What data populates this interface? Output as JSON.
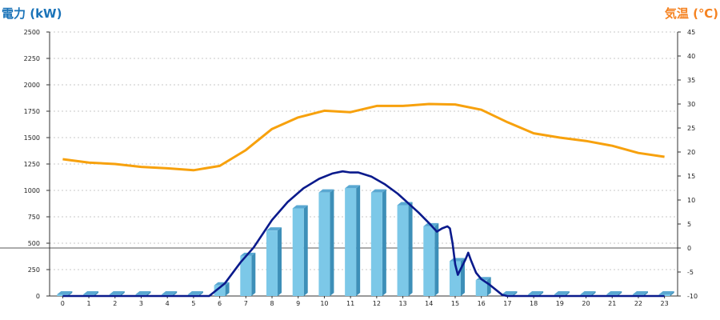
{
  "chart_data": {
    "type": "bar",
    "ylabel_left": "電力 (kW)",
    "ylabel_right": "気温 (℃)",
    "categories": [
      "0",
      "1",
      "2",
      "3",
      "4",
      "5",
      "6",
      "7",
      "8",
      "9",
      "10",
      "11",
      "12",
      "13",
      "14",
      "15",
      "16",
      "17",
      "18",
      "19",
      "20",
      "21",
      "22",
      "23"
    ],
    "left_ylim": [
      0,
      2500
    ],
    "left_ticks": [
      0,
      250,
      500,
      750,
      1000,
      1250,
      1500,
      1750,
      2000,
      2250,
      2500
    ],
    "right_ylim": [
      -10,
      45
    ],
    "right_ticks": [
      -10,
      -5,
      0,
      5,
      10,
      15,
      20,
      25,
      30,
      35,
      40,
      45
    ],
    "grid": true,
    "series": [
      {
        "type": "bar",
        "axis": "left",
        "values": [
          0,
          0,
          0,
          0,
          0,
          0,
          100,
          380,
          620,
          830,
          980,
          1020,
          980,
          860,
          660,
          330,
          150,
          0,
          0,
          0,
          0,
          0,
          0,
          0
        ]
      },
      {
        "type": "line",
        "axis": "left",
        "x": [
          0,
          5.6,
          6.2,
          6.8,
          7.3,
          8.0,
          8.6,
          9.2,
          9.8,
          10.3,
          10.7,
          11.0,
          11.3,
          11.8,
          12.3,
          12.8,
          13.2,
          13.6,
          14.0,
          14.3,
          14.5,
          14.7,
          14.8,
          14.9,
          15.0,
          15.1,
          15.2,
          15.3,
          15.4,
          15.5,
          15.6,
          15.8,
          16.0,
          16.3,
          16.8,
          17.0,
          23.0
        ],
        "values": [
          0,
          0,
          120,
          320,
          460,
          720,
          890,
          1020,
          1110,
          1160,
          1180,
          1170,
          1170,
          1130,
          1060,
          970,
          880,
          790,
          690,
          610,
          640,
          660,
          640,
          500,
          300,
          200,
          250,
          300,
          350,
          410,
          340,
          220,
          160,
          110,
          10,
          0,
          0
        ]
      },
      {
        "type": "line",
        "axis": "right",
        "values": [
          18.5,
          17.8,
          17.5,
          16.9,
          16.6,
          16.2,
          17.1,
          20.4,
          24.8,
          27.2,
          28.6,
          28.3,
          29.6,
          29.6,
          30.0,
          29.9,
          28.8,
          26.2,
          23.9,
          23.0,
          22.3,
          21.3,
          19.8,
          19.0
        ]
      }
    ],
    "colors": {
      "bar_front": "#7cc8e8",
      "bar_side": "#3d8fb8",
      "bar_top": "#5aa8d2",
      "power_line": "#0a1a8c",
      "temp_line": "#f7a10d",
      "left_title": "#1a73b8",
      "right_title": "#f58220",
      "grid": "#c8c8c8"
    }
  }
}
